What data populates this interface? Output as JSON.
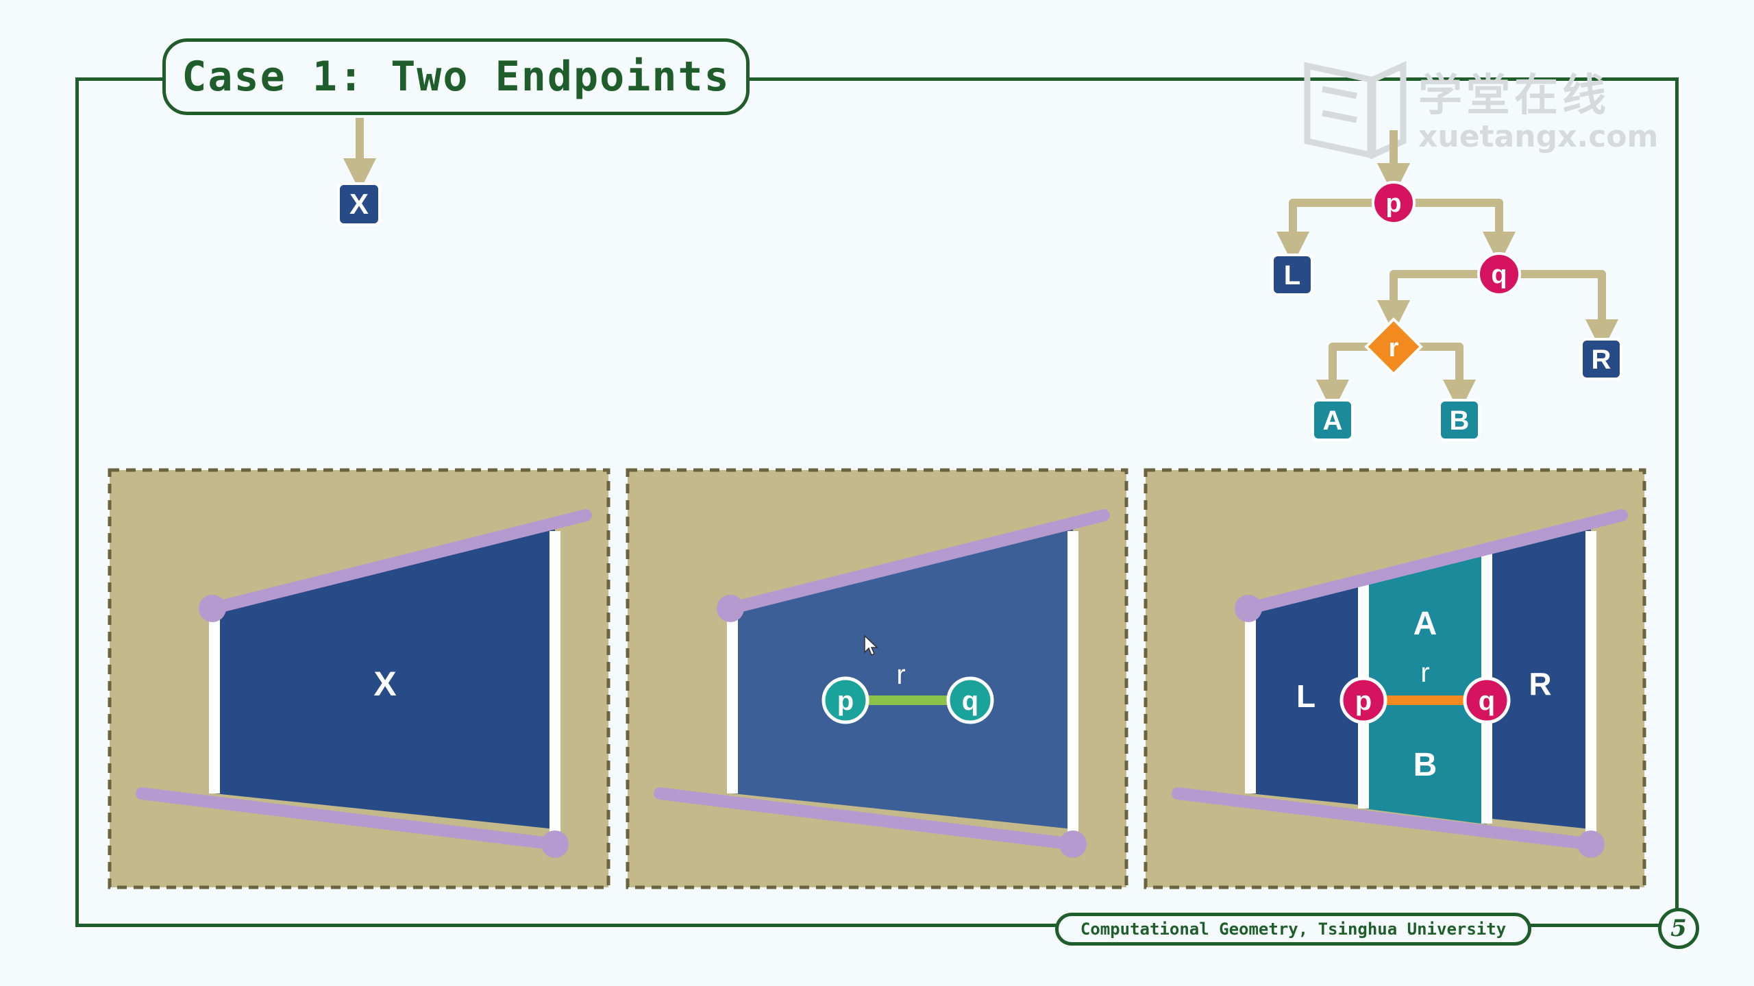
{
  "title": "Case 1: Two Endpoints",
  "footer": "Computational Geometry, Tsinghua University",
  "page_number": "5",
  "watermark": {
    "cn": "学堂在线",
    "en": "xuetangx.com"
  },
  "left_tree": {
    "leaf": "X"
  },
  "right_tree": {
    "root": "p",
    "q": "q",
    "r": "r",
    "leaves": {
      "L": "L",
      "R": "R",
      "A": "A",
      "B": "B"
    }
  },
  "panels": {
    "panel1": {
      "region": "X"
    },
    "panel2": {
      "p": "p",
      "q": "q",
      "r": "r"
    },
    "panel3": {
      "L": "L",
      "R": "R",
      "A": "A",
      "B": "B",
      "p": "p",
      "q": "q",
      "r": "r"
    }
  },
  "colors": {
    "frame": "#1f5e2a",
    "tan": "#c4b98b",
    "navy": "#274b87",
    "teal": "#1b8a9a",
    "purple": "#b59ad0",
    "magenta": "#d6135f",
    "orange": "#f28a1f",
    "green_node": "#1aa39a"
  }
}
